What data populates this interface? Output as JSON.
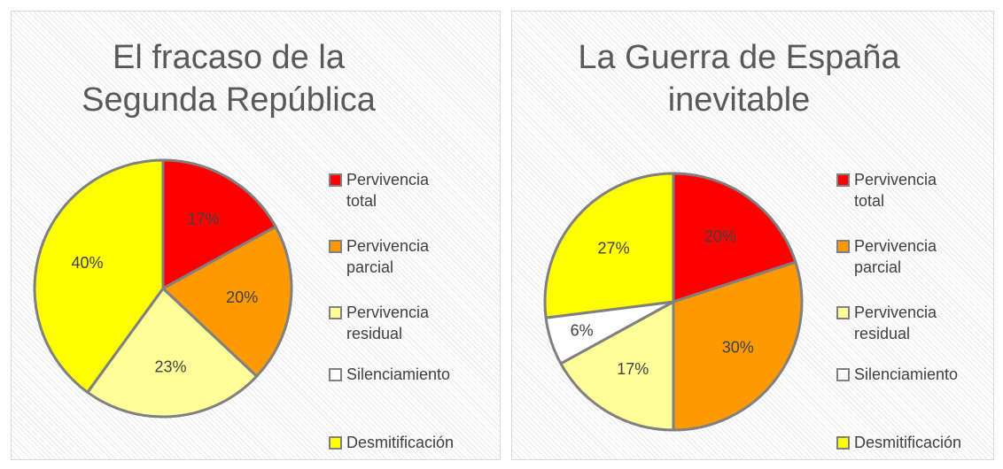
{
  "chart_data": [
    {
      "type": "pie",
      "title": "El fracaso de la Segunda República",
      "categories": [
        "Pervivencia total",
        "Pervivencia parcial",
        "Pervivencia residual",
        "Silenciamiento",
        "Desmitificación"
      ],
      "values": [
        17,
        20,
        23,
        0,
        40
      ],
      "value_labels": [
        "17%",
        "20%",
        "23%",
        null,
        "40%"
      ],
      "colors": [
        "#ff0000",
        "#ff9900",
        "#ffff99",
        "#ffffff",
        "#ffff00"
      ],
      "legend": "right"
    },
    {
      "type": "pie",
      "title": "La Guerra de España inevitable",
      "categories": [
        "Pervivencia total",
        "Pervivencia parcial",
        "Pervivencia residual",
        "Silenciamiento",
        "Desmitificación"
      ],
      "values": [
        20,
        30,
        17,
        6,
        27
      ],
      "value_labels": [
        "20%",
        "30%",
        "17%",
        "6%",
        "27%"
      ],
      "colors": [
        "#ff0000",
        "#ff9900",
        "#ffff99",
        "#ffffff",
        "#ffff00"
      ],
      "legend": "right"
    }
  ]
}
